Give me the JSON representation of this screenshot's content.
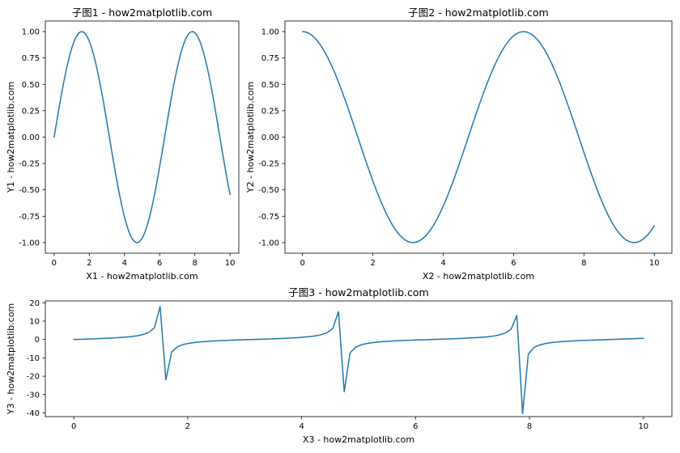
{
  "chart_data": [
    {
      "type": "line",
      "title": "子图1 - how2matplotlib.com",
      "xlabel": "X1 - how2matplotlib.com",
      "ylabel": "Y1 - how2matplotlib.com",
      "function": "sin",
      "x_range": [
        0,
        10
      ],
      "xlim": [
        -0.5,
        10.5
      ],
      "ylim": [
        -1.1,
        1.1
      ],
      "xticks": [
        0,
        2,
        4,
        6,
        8,
        10
      ],
      "xtick_labels": [
        "0",
        "2",
        "4",
        "6",
        "8",
        "10"
      ],
      "yticks": [
        -1.0,
        -0.75,
        -0.5,
        -0.25,
        0.0,
        0.25,
        0.5,
        0.75,
        1.0
      ],
      "ytick_labels": [
        "-1.00",
        "-0.75",
        "-0.50",
        "-0.25",
        "0.00",
        "0.25",
        "0.50",
        "0.75",
        "1.00"
      ],
      "series_color": "#1f77b4",
      "grid": false
    },
    {
      "type": "line",
      "title": "子图2 - how2matplotlib.com",
      "xlabel": "X2 - how2matplotlib.com",
      "ylabel": "Y2 - how2matplotlib.com",
      "function": "cos",
      "x_range": [
        0,
        10
      ],
      "xlim": [
        -0.5,
        10.5
      ],
      "ylim": [
        -1.1,
        1.1
      ],
      "xticks": [
        0,
        2,
        4,
        6,
        8,
        10
      ],
      "xtick_labels": [
        "0",
        "2",
        "4",
        "6",
        "8",
        "10"
      ],
      "yticks": [
        -1.0,
        -0.75,
        -0.5,
        -0.25,
        0.0,
        0.25,
        0.5,
        0.75,
        1.0
      ],
      "ytick_labels": [
        "-1.00",
        "-0.75",
        "-0.50",
        "-0.25",
        "0.00",
        "0.25",
        "0.50",
        "0.75",
        "1.00"
      ],
      "series_color": "#1f77b4",
      "grid": false
    },
    {
      "type": "line",
      "title": "子图3 - how2matplotlib.com",
      "xlabel": "X3 - how2matplotlib.com",
      "ylabel": "Y3 - how2matplotlib.com",
      "function": "tan",
      "x_range": [
        0,
        10
      ],
      "xlim": [
        -0.5,
        10.5
      ],
      "ylim": [
        -42,
        21
      ],
      "xticks": [
        0,
        2,
        4,
        6,
        8,
        10
      ],
      "xtick_labels": [
        "0",
        "2",
        "4",
        "6",
        "8",
        "10"
      ],
      "yticks": [
        -40,
        -30,
        -20,
        -10,
        0,
        10,
        20
      ],
      "ytick_labels": [
        "-40",
        "-30",
        "-20",
        "-10",
        "0",
        "10",
        "20"
      ],
      "series_color": "#1f77b4",
      "grid": false
    }
  ]
}
